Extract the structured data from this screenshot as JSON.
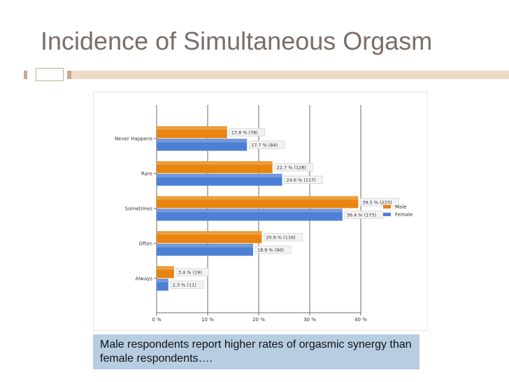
{
  "slide": {
    "title": "Incidence of Simultaneous Orgasm",
    "caption": "Male respondents report higher rates of orgasmic synergy than female respondents…."
  },
  "colors": {
    "male": "#e8840f",
    "female": "#4d7fd4",
    "title": "#7a6e67",
    "caption_bg": "#b7cde2",
    "accent_band": "#ecdcc6",
    "accent_dark": "#c9ab8a"
  },
  "chart_data": {
    "type": "bar",
    "orientation": "horizontal",
    "categories": [
      "Never Happens",
      "Rare",
      "Sometimes",
      "Often",
      "Always"
    ],
    "series": [
      {
        "name": "Male",
        "values": [
          13.8,
          22.7,
          39.5,
          20.6,
          3.4
        ],
        "labels": [
          "13.8 % (78)",
          "22.7 % (128)",
          "39.5 % (223)",
          "20.6 % (116)",
          "3.4 % (19)"
        ]
      },
      {
        "name": "Female",
        "values": [
          17.7,
          24.6,
          36.4,
          18.9,
          2.3
        ],
        "labels": [
          "17.7 % (84)",
          "24.6 % (117)",
          "36.4 % (173)",
          "18.9 % (90)",
          "2.3 % (11)"
        ]
      }
    ],
    "x_ticks": [
      "0 %",
      "10 %",
      "20 %",
      "30 %",
      "40 %"
    ],
    "xlim": [
      0,
      40
    ],
    "grid": true,
    "legend_position": "right"
  }
}
